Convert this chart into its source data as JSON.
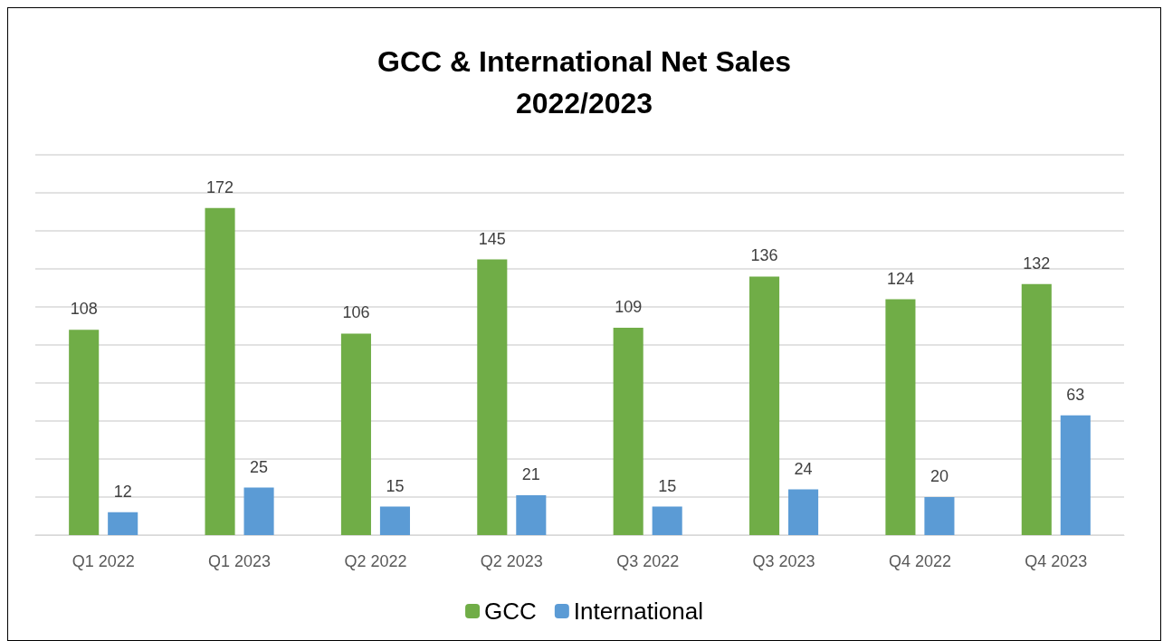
{
  "chart_data": {
    "type": "bar",
    "title": "GCC & International Net Sales",
    "subtitle": "2022/2023",
    "categories": [
      "Q1 2022",
      "Q1 2023",
      "Q2 2022",
      "Q2 2023",
      "Q3 2022",
      "Q3 2023",
      "Q4 2022",
      "Q4 2023"
    ],
    "series": [
      {
        "name": "GCC",
        "color": "#70ad47",
        "values": [
          108,
          172,
          106,
          145,
          109,
          136,
          124,
          132
        ]
      },
      {
        "name": "International",
        "color": "#5b9bd5",
        "values": [
          12,
          25,
          15,
          21,
          15,
          24,
          20,
          63
        ]
      }
    ],
    "ylim": [
      0,
      200
    ],
    "yticks": [
      {
        "value": 0,
        "label": null
      },
      {
        "value": 20,
        "label": null
      },
      {
        "value": 40,
        "label": null
      },
      {
        "value": 60,
        "label": null
      },
      {
        "value": 80,
        "label": null
      },
      {
        "value": 100,
        "label": null
      },
      {
        "value": 120,
        "label": null
      },
      {
        "value": 140,
        "label": null
      },
      {
        "value": 160,
        "label": null
      },
      {
        "value": 180,
        "label": null
      },
      {
        "value": 200,
        "label": null
      }
    ],
    "tick_labels": "x",
    "grid": "y",
    "legend": "bottom",
    "data_labels": true
  }
}
